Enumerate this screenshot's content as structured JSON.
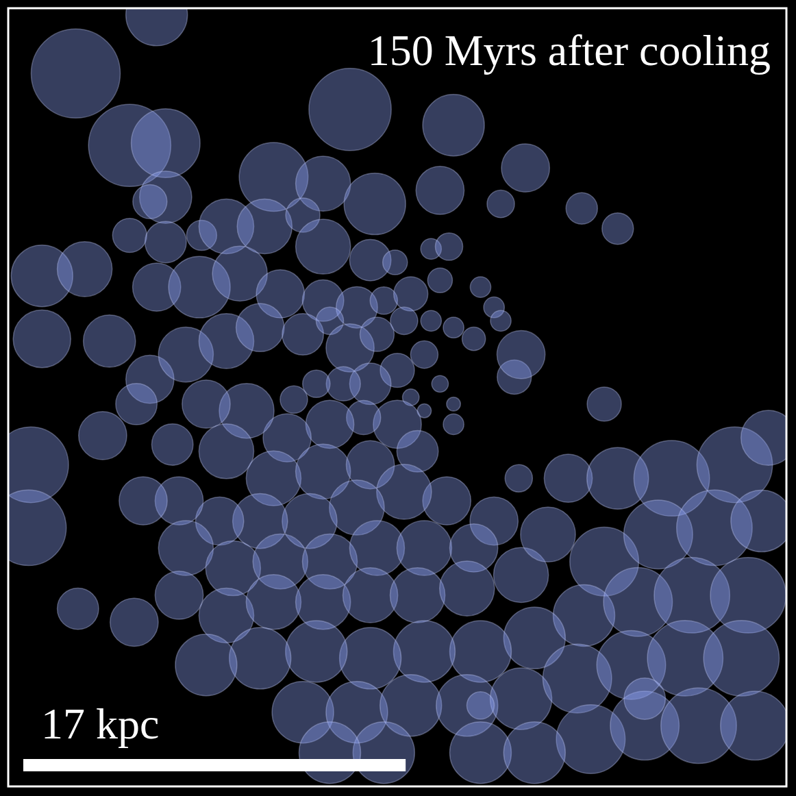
{
  "chart_data": {
    "type": "bubble",
    "title": "150 Myrs after cooling",
    "color": "#8fa2f7",
    "tick_labels": false,
    "xlim": [
      0,
      34.6
    ],
    "ylim": [
      0,
      34.6
    ],
    "scale_bar": {
      "label": "17 kpc",
      "length": 17
    },
    "x": [
      6.6,
      3.0,
      15.2,
      19.8,
      5.4,
      7.0,
      11.8,
      14.0,
      16.3,
      19.2,
      23.0,
      21.9,
      25.5,
      27.1,
      7.0,
      6.3,
      5.4,
      7.0,
      8.6,
      9.7,
      11.4,
      13.1,
      14.0,
      16.1,
      17.2,
      18.8,
      19.6,
      1.5,
      3.4,
      1.5,
      4.5,
      6.6,
      8.5,
      10.3,
      12.1,
      14.0,
      15.5,
      16.7,
      17.9,
      19.2,
      21.0,
      21.6,
      20.7,
      21.9,
      6.3,
      7.9,
      9.7,
      11.2,
      13.1,
      14.3,
      15.2,
      16.4,
      17.6,
      18.8,
      19.8,
      18.5,
      17.3,
      16.1,
      14.9,
      13.7,
      12.7,
      17.9,
      19.2,
      19.8,
      18.5,
      17.3,
      15.8,
      14.3,
      12.4,
      10.6,
      8.8,
      5.7,
      4.2,
      1.0,
      0.9,
      7.3,
      9.7,
      11.8,
      14.0,
      16.1,
      18.2,
      19.8,
      22.5,
      22.8,
      26.5,
      22.7,
      21.6,
      19.5,
      17.6,
      15.5,
      13.4,
      11.2,
      9.4,
      7.6,
      6.0,
      7.9,
      10.0,
      12.1,
      14.3,
      16.4,
      18.5,
      20.7,
      3.1,
      5.6,
      7.6,
      9.7,
      11.8,
      14.0,
      16.1,
      18.2,
      20.4,
      22.8,
      24.0,
      24.9,
      27.1,
      29.5,
      32.3,
      33.8,
      26.5,
      28.9,
      31.4,
      33.5,
      25.6,
      28.0,
      30.4,
      32.9,
      23.4,
      21.0,
      18.5,
      16.1,
      13.7,
      11.2,
      8.8,
      13.1,
      15.5,
      17.9,
      20.4,
      22.8,
      25.3,
      27.7,
      30.1,
      32.6,
      25.9,
      28.3,
      30.7,
      33.2,
      21.0,
      23.4,
      16.7,
      14.3,
      21.0,
      28.3
    ],
    "values": [
      34.3,
      31.7,
      30.1,
      29.4,
      28.5,
      28.6,
      27.1,
      26.8,
      25.9,
      26.5,
      27.5,
      25.9,
      25.7,
      24.8,
      26.2,
      26.0,
      24.5,
      24.2,
      24.5,
      24.9,
      24.9,
      25.4,
      24.0,
      23.4,
      23.3,
      23.9,
      24.0,
      22.7,
      23.0,
      19.9,
      19.8,
      22.2,
      22.2,
      22.8,
      21.9,
      21.6,
      21.3,
      21.6,
      21.9,
      22.5,
      22.2,
      21.3,
      19.9,
      20.7,
      18.1,
      19.2,
      19.8,
      20.4,
      20.1,
      20.7,
      19.5,
      20.1,
      20.7,
      20.7,
      20.4,
      19.2,
      18.5,
      17.9,
      17.9,
      17.9,
      17.2,
      17.3,
      17.9,
      17.0,
      16.7,
      16.1,
      16.4,
      16.1,
      15.5,
      16.7,
      17.0,
      17.0,
      15.6,
      14.3,
      11.5,
      15.2,
      14.9,
      13.7,
      14.0,
      14.3,
      14.9,
      16.1,
      18.2,
      19.2,
      17.0,
      13.7,
      11.8,
      12.7,
      13.1,
      12.4,
      11.8,
      11.8,
      11.8,
      12.7,
      12.7,
      10.6,
      9.7,
      10.0,
      10.0,
      10.6,
      10.6,
      10.6,
      7.9,
      7.3,
      8.5,
      7.6,
      8.2,
      8.2,
      8.5,
      8.5,
      8.8,
      9.4,
      11.2,
      13.7,
      13.7,
      13.7,
      14.3,
      15.5,
      10.0,
      11.2,
      11.5,
      11.8,
      7.6,
      8.2,
      8.5,
      8.5,
      6.6,
      6.0,
      6.0,
      5.7,
      6.0,
      5.7,
      5.4,
      3.3,
      3.3,
      3.6,
      3.6,
      3.9,
      4.8,
      5.4,
      5.7,
      5.7,
      2.1,
      2.7,
      2.7,
      2.7,
      1.5,
      1.5,
      1.5,
      1.5,
      3.6,
      3.9
    ],
    "sizes": [
      1.37,
      1.98,
      1.83,
      1.37,
      1.83,
      1.53,
      1.53,
      1.22,
      1.37,
      1.07,
      1.07,
      0.61,
      0.7,
      0.7,
      1.16,
      0.76,
      0.76,
      0.92,
      0.67,
      1.22,
      1.22,
      0.76,
      1.22,
      0.92,
      0.55,
      0.46,
      0.61,
      1.37,
      1.22,
      1.28,
      1.16,
      1.07,
      1.37,
      1.22,
      1.07,
      0.92,
      0.92,
      0.61,
      0.76,
      0.55,
      0.46,
      0.46,
      0.52,
      0.46,
      1.07,
      1.22,
      1.22,
      1.07,
      0.92,
      0.61,
      1.07,
      0.76,
      0.61,
      0.46,
      0.46,
      0.61,
      0.76,
      0.92,
      0.76,
      0.61,
      0.61,
      0.37,
      0.37,
      0.31,
      0.31,
      1.07,
      0.76,
      1.07,
      1.07,
      1.22,
      1.07,
      0.92,
      1.07,
      1.68,
      1.68,
      0.92,
      1.22,
      1.22,
      1.22,
      1.07,
      0.92,
      0.46,
      0.76,
      1.07,
      0.76,
      0.61,
      1.07,
      1.07,
      1.22,
      1.22,
      1.22,
      1.22,
      1.07,
      1.07,
      1.07,
      1.22,
      1.22,
      1.22,
      1.22,
      1.22,
      1.22,
      1.07,
      0.92,
      1.07,
      1.07,
      1.22,
      1.22,
      1.22,
      1.22,
      1.22,
      1.22,
      1.22,
      1.22,
      1.07,
      1.37,
      1.68,
      1.68,
      1.22,
      1.53,
      1.53,
      1.68,
      1.37,
      1.37,
      1.53,
      1.68,
      1.68,
      1.37,
      1.37,
      1.37,
      1.37,
      1.37,
      1.37,
      1.37,
      1.37,
      1.37,
      1.37,
      1.37,
      1.37,
      1.53,
      1.53,
      1.68,
      1.68,
      1.53,
      1.53,
      1.68,
      1.53,
      1.37,
      1.37,
      1.37,
      1.37,
      0.61,
      0.92
    ]
  }
}
